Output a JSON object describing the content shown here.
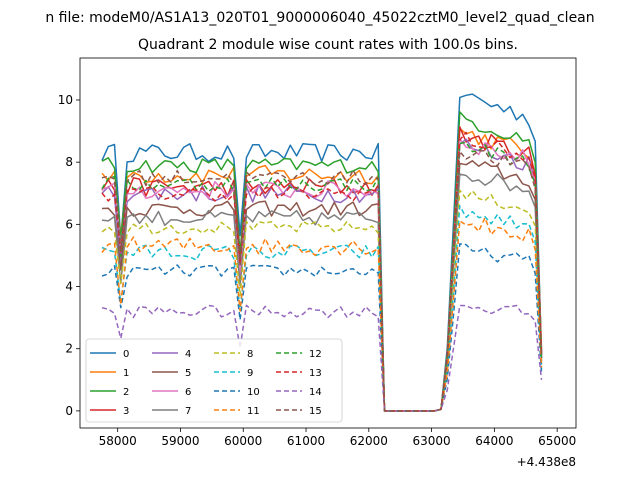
{
  "figure": {
    "suptitle": "n file: modeM0/AS1A13_020T01_9000006040_45022cztM0_level2_quad_clean",
    "title": "Quadrant 2 module wise count rates with 100.0s bins.",
    "x_offset_label": "+4.438e8"
  },
  "chart_data": {
    "type": "line",
    "title": "Quadrant 2 module wise count rates with 100.0s bins.",
    "xlabel": "",
    "ylabel": "",
    "x_offset": 443800000,
    "xlim": [
      57400,
      65300
    ],
    "ylim": [
      -0.55,
      11.35
    ],
    "xticks": [
      58000,
      59000,
      60000,
      61000,
      62000,
      63000,
      64000,
      65000
    ],
    "yticks": [
      0,
      2,
      4,
      6,
      8,
      10
    ],
    "grid": false,
    "legend": {
      "placement": "lower-left",
      "columns": 4
    },
    "segments": [
      {
        "x_start": 57750,
        "x_end": 62150,
        "step": 100
      },
      {
        "x_start": 62250,
        "x_end": 63050,
        "step": 100,
        "flat_zero": true
      },
      {
        "x_start": 63150,
        "x_end": 64750,
        "step": 100
      }
    ],
    "series": [
      {
        "name": "0",
        "color": "#1f77b4",
        "dash": "solid",
        "level_a": 8.3,
        "level_b": 10.2,
        "noise": 0.3,
        "last": 1.8
      },
      {
        "name": "1",
        "color": "#ff7f0e",
        "dash": "solid",
        "level_a": 7.6,
        "level_b": 9.0,
        "noise": 0.3,
        "last": 2.0
      },
      {
        "name": "2",
        "color": "#2ca02c",
        "dash": "solid",
        "level_a": 7.9,
        "level_b": 9.4,
        "noise": 0.25,
        "last": 1.9
      },
      {
        "name": "3",
        "color": "#d62728",
        "dash": "solid",
        "level_a": 7.2,
        "level_b": 8.9,
        "noise": 0.3,
        "last": 1.8
      },
      {
        "name": "4",
        "color": "#9467bd",
        "dash": "solid",
        "level_a": 7.0,
        "level_b": 8.6,
        "noise": 0.3,
        "last": 1.7
      },
      {
        "name": "5",
        "color": "#8c564b",
        "dash": "solid",
        "level_a": 6.5,
        "level_b": 8.0,
        "noise": 0.25,
        "last": 1.6
      },
      {
        "name": "6",
        "color": "#e377c2",
        "dash": "solid",
        "level_a": 7.1,
        "level_b": 8.7,
        "noise": 0.3,
        "last": 1.8
      },
      {
        "name": "7",
        "color": "#7f7f7f",
        "dash": "solid",
        "level_a": 6.2,
        "level_b": 7.7,
        "noise": 0.25,
        "last": 1.5
      },
      {
        "name": "8",
        "color": "#bcbd22",
        "dash": "dashed",
        "level_a": 5.9,
        "level_b": 7.0,
        "noise": 0.2,
        "last": 1.5
      },
      {
        "name": "9",
        "color": "#17becf",
        "dash": "dashed",
        "level_a": 5.1,
        "level_b": 6.4,
        "noise": 0.25,
        "last": 1.3
      },
      {
        "name": "10",
        "color": "#1f77b4",
        "dash": "dashed",
        "level_a": 4.5,
        "level_b": 5.2,
        "noise": 0.2,
        "last": 1.2
      },
      {
        "name": "11",
        "color": "#ff7f0e",
        "dash": "dashed",
        "level_a": 5.3,
        "level_b": 6.1,
        "noise": 0.3,
        "last": 1.4
      },
      {
        "name": "12",
        "color": "#2ca02c",
        "dash": "dashed",
        "level_a": 7.3,
        "level_b": 8.6,
        "noise": 0.25,
        "last": 1.7
      },
      {
        "name": "13",
        "color": "#d62728",
        "dash": "dashed",
        "level_a": 7.0,
        "level_b": 8.8,
        "noise": 0.25,
        "last": 1.8
      },
      {
        "name": "14",
        "color": "#9467bd",
        "dash": "dashed",
        "level_a": 3.2,
        "level_b": 3.4,
        "noise": 0.2,
        "last": 1.0
      },
      {
        "name": "15",
        "color": "#8c564b",
        "dash": "dashed",
        "level_a": 7.5,
        "level_b": 8.4,
        "noise": 0.25,
        "last": 1.7
      }
    ]
  }
}
